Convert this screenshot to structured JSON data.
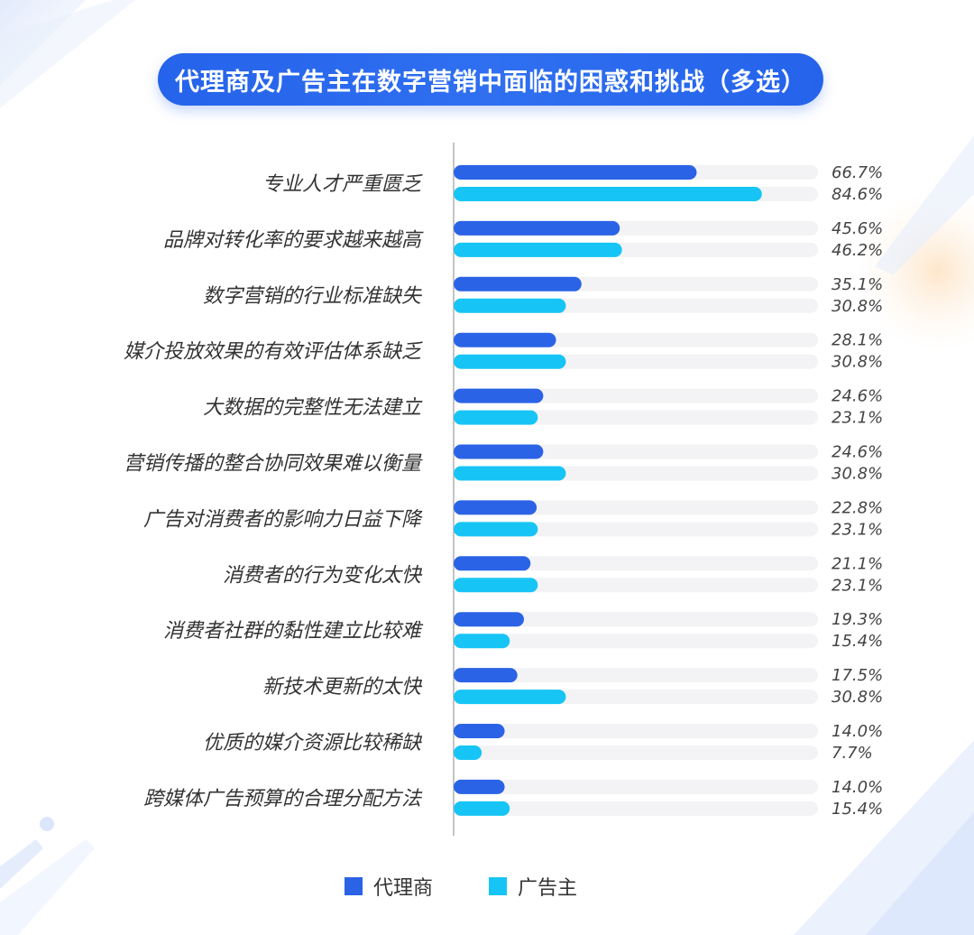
{
  "title": "代理商及广告主在数字营销中面临的困惑和挑战（多选）",
  "colors": {
    "agency": "#2a63e6",
    "advertiser": "#16c5f5",
    "track": "#f3f3f5",
    "axis": "#b0b0b0",
    "label": "#333333",
    "value": "#444444"
  },
  "chart_data": {
    "type": "bar",
    "orientation": "horizontal",
    "categories": [
      "专业人才严重匮乏",
      "品牌对转化率的要求越来越高",
      "数字营销的行业标准缺失",
      "媒介投放效果的有效评估体系缺乏",
      "大数据的完整性无法建立",
      "营销传播的整合协同效果难以衡量",
      "广告对消费者的影响力日益下降",
      "消费者的行为变化太快",
      "消费者社群的黏性建立比较难",
      "新技术更新的太快",
      "优质的媒介资源比较稀缺",
      "跨媒体广告预算的合理分配方法"
    ],
    "series": [
      {
        "name": "代理商",
        "values": [
          66.7,
          45.6,
          35.1,
          28.1,
          24.6,
          24.6,
          22.8,
          21.1,
          19.3,
          17.5,
          14.0,
          14.0
        ],
        "labels": [
          "66.7%",
          "45.6%",
          "35.1%",
          "28.1%",
          "24.6%",
          "24.6%",
          "22.8%",
          "21.1%",
          "19.3%",
          "17.5%",
          "14.0%",
          "14.0%"
        ]
      },
      {
        "name": "广告主",
        "values": [
          84.6,
          46.2,
          30.8,
          30.8,
          23.1,
          30.8,
          23.1,
          23.1,
          15.4,
          30.8,
          7.7,
          15.4
        ],
        "labels": [
          "84.6%",
          "46.2%",
          "30.8%",
          "30.8%",
          "23.1%",
          "30.8%",
          "23.1%",
          "23.1%",
          "15.4%",
          "30.8%",
          "7.7%",
          "15.4%"
        ]
      }
    ],
    "xlim": [
      0,
      100
    ],
    "legend_position": "bottom-center"
  }
}
